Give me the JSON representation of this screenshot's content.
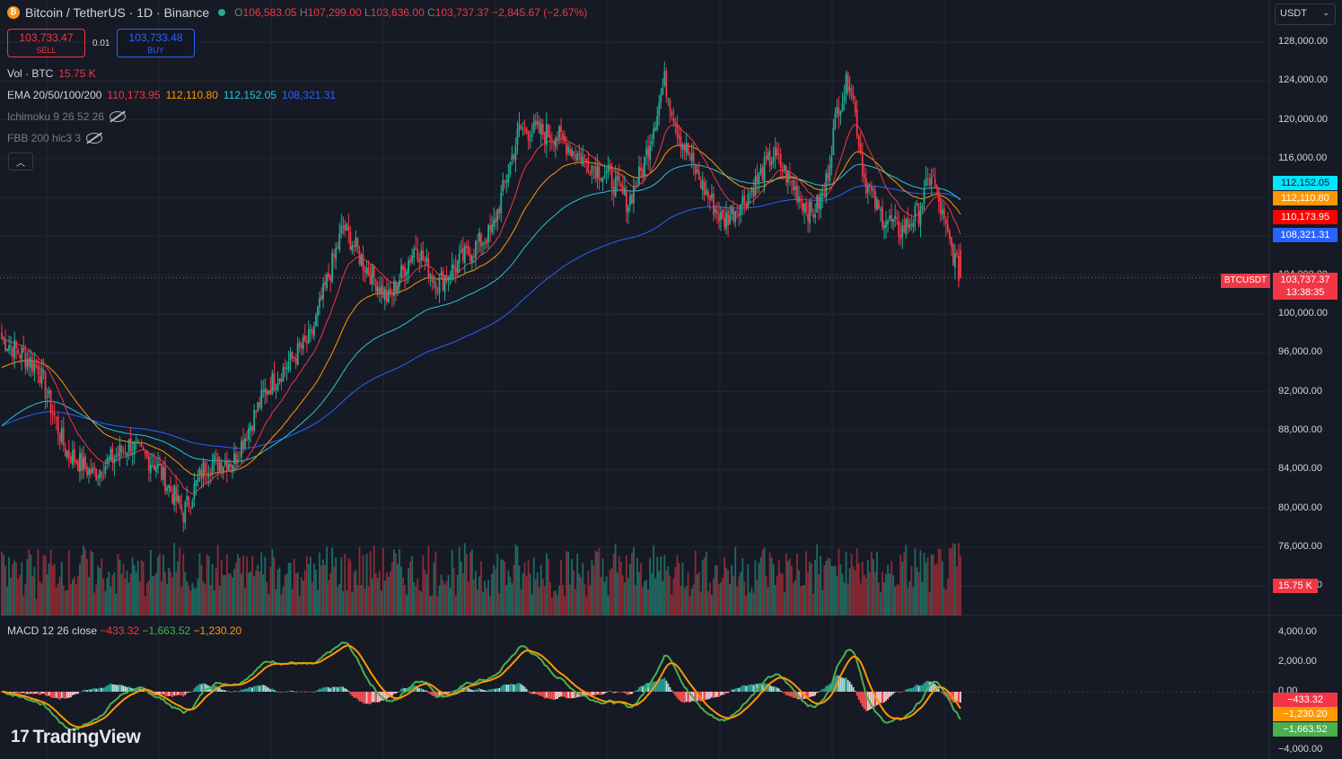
{
  "header": {
    "symbol_title": "Bitcoin / TetherUS · 1D · Binance",
    "ohlc": {
      "o_label": "O",
      "o": "106,583.05",
      "h_label": "H",
      "h": "107,299.00",
      "l_label": "L",
      "l": "103,636.00",
      "c_label": "C",
      "c": "103,737.37",
      "change": "−2,845.67 (−2.67%)"
    }
  },
  "trade": {
    "sell_price": "103,733.47",
    "sell_label": "SELL",
    "spread": "0.01",
    "buy_price": "103,733.48",
    "buy_label": "BUY"
  },
  "indicators": {
    "vol_label": "Vol · BTC",
    "vol_value": "15.75 K",
    "ema_label": "EMA 20/50/100/200",
    "ema20": "110,173.95",
    "ema50": "112,110.80",
    "ema100": "112,152.05",
    "ema200": "108,321.31",
    "ichimoku_label": "Ichimoku 9 26 52 26",
    "fbb_label": "FBB 200 hlc3 3"
  },
  "currency": "USDT",
  "price_axis": [
    "128,000.00",
    "124,000.00",
    "120,000.00",
    "116,000.00",
    "112,000.00",
    "108,000.00",
    "104,000.00",
    "100,000.00",
    "96,000.00",
    "92,000.00",
    "88,000.00",
    "84,000.00",
    "80,000.00",
    "76,000.00",
    "72,000.00"
  ],
  "tags": {
    "ema100": "112,152.05",
    "ema50": "112,110.80",
    "ema20": "110,173.95",
    "ema200": "108,321.31",
    "symbol": "BTCUSDT",
    "last_price": "103,737.37",
    "countdown": "13:38:35",
    "volume": "15.75 K"
  },
  "macd": {
    "label": "MACD 12 26 close",
    "hist": "−433.32",
    "macd": "−1,663.52",
    "signal": "−1,230.20",
    "axis": [
      "4,000.00",
      "2,000.00",
      "0.00",
      "−4,000.00"
    ],
    "tag_hist": "−433.32",
    "tag_signal": "−1,230.20",
    "tag_macd": "−1,663.52"
  },
  "colors": {
    "up": "#22ab94",
    "down": "#f23645",
    "ema20": "#f23645",
    "ema50": "#ff9800",
    "ema100": "#26c6da",
    "ema200": "#2962ff",
    "macd_line": "#4caf50",
    "signal_line": "#ff9800"
  },
  "logo_text": "TradingView",
  "chart_data": {
    "type": "candlestick",
    "title": "Bitcoin / TetherUS · 1D · Binance",
    "ylim": [
      72000,
      129000
    ],
    "anchors_close": [
      [
        0,
        97500
      ],
      [
        20,
        94500
      ],
      [
        35,
        86000
      ],
      [
        50,
        83500
      ],
      [
        70,
        86500
      ],
      [
        85,
        84500
      ],
      [
        100,
        79500
      ],
      [
        112,
        84500
      ],
      [
        128,
        85000
      ],
      [
        145,
        92000
      ],
      [
        158,
        95000
      ],
      [
        170,
        97500
      ],
      [
        188,
        109000
      ],
      [
        200,
        105000
      ],
      [
        213,
        101500
      ],
      [
        228,
        107000
      ],
      [
        240,
        103000
      ],
      [
        258,
        106500
      ],
      [
        270,
        108500
      ],
      [
        285,
        119000
      ],
      [
        305,
        118500
      ],
      [
        320,
        116000
      ],
      [
        335,
        114000
      ],
      [
        345,
        111500
      ],
      [
        353,
        115000
      ],
      [
        365,
        124000
      ],
      [
        373,
        118500
      ],
      [
        385,
        113500
      ],
      [
        397,
        109500
      ],
      [
        410,
        112000
      ],
      [
        425,
        116500
      ],
      [
        438,
        112500
      ],
      [
        446,
        110200
      ],
      [
        453,
        112500
      ],
      [
        460,
        121000
      ],
      [
        467,
        124500
      ],
      [
        475,
        114000
      ],
      [
        483,
        110500
      ],
      [
        495,
        108500
      ],
      [
        505,
        110500
      ],
      [
        512,
        114500
      ],
      [
        520,
        108500
      ],
      [
        528,
        103737
      ]
    ],
    "volume_last": "15.75 K",
    "macd_last": {
      "macd": -1663.52,
      "signal": -1230.2,
      "histogram": -433.32
    }
  }
}
